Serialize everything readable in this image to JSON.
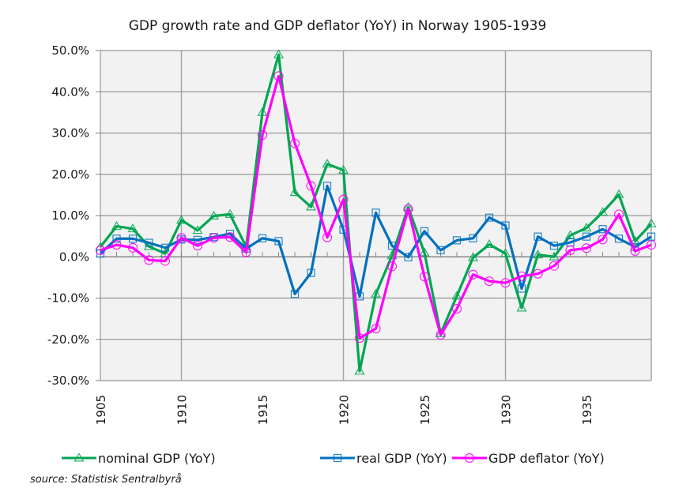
{
  "chart_data": {
    "type": "line",
    "title": "GDP growth rate and GDP deflator  (YoY) in Norway  1905-1939",
    "xlabel": "",
    "ylabel": "",
    "x": [
      1905,
      1906,
      1907,
      1908,
      1909,
      1910,
      1911,
      1912,
      1913,
      1914,
      1915,
      1916,
      1917,
      1918,
      1919,
      1920,
      1921,
      1922,
      1923,
      1924,
      1925,
      1926,
      1927,
      1928,
      1929,
      1930,
      1931,
      1932,
      1933,
      1934,
      1935,
      1936,
      1937,
      1938,
      1939
    ],
    "xticks": [
      "1905",
      "1910",
      "1915",
      "1920",
      "1925",
      "1930",
      "1935"
    ],
    "xtick_years": [
      1905,
      1910,
      1915,
      1920,
      1925,
      1930,
      1935
    ],
    "xlim": [
      1905,
      1939
    ],
    "ylim": [
      -30,
      50
    ],
    "yticks": [
      50,
      40,
      30,
      20,
      10,
      0,
      -10,
      -20,
      -30
    ],
    "ytick_labels": [
      "50.0%",
      "40.0%",
      "30.0%",
      "20.0%",
      "10.0%",
      "0.0%",
      "-10.0%",
      "-20.0%",
      "-30.0%"
    ],
    "grid": true,
    "vertical_gridlines_years": [
      1910,
      1920,
      1930
    ],
    "legend_position": "bottom",
    "unit": "%",
    "series": [
      {
        "name": "nominal GDP (YoY)",
        "color": "#00a650",
        "marker": "triangle",
        "values": [
          2.4,
          7.4,
          6.8,
          2.5,
          0.8,
          8.9,
          6.4,
          9.9,
          10.3,
          2.4,
          35.0,
          49.0,
          15.6,
          12.1,
          22.5,
          21.0,
          -27.7,
          -9.0,
          0.3,
          12.0,
          1.0,
          -18.6,
          -9.5,
          -0.2,
          3.0,
          0.8,
          -12.4,
          0.5,
          0.0,
          5.2,
          7.0,
          10.8,
          15.1,
          3.8,
          8.0
        ]
      },
      {
        "name": "real GDP (YoY)",
        "color": "#0070c0",
        "marker": "square",
        "values": [
          0.8,
          4.4,
          4.4,
          3.4,
          2.2,
          4.2,
          4.1,
          4.8,
          5.6,
          2.0,
          4.5,
          3.8,
          -9.0,
          -3.9,
          17.2,
          6.6,
          -9.6,
          10.7,
          2.7,
          -0.1,
          6.2,
          1.6,
          4.0,
          4.5,
          9.5,
          7.6,
          -7.7,
          4.9,
          2.7,
          3.5,
          4.9,
          6.7,
          4.4,
          2.4,
          4.9
        ]
      },
      {
        "name": "GDP deflator (YoY)",
        "color": "#ff00ff",
        "marker": "circle",
        "values": [
          1.6,
          2.9,
          2.2,
          -0.8,
          -1.0,
          4.6,
          2.7,
          4.6,
          4.8,
          1.1,
          29.5,
          43.8,
          27.5,
          17.2,
          4.7,
          13.9,
          -19.7,
          -17.4,
          -2.3,
          11.6,
          -4.8,
          -18.9,
          -12.6,
          -4.3,
          -5.9,
          -6.3,
          -4.7,
          -4.1,
          -2.2,
          1.6,
          2.1,
          4.2,
          10.3,
          1.4,
          2.9
        ]
      }
    ]
  },
  "source_note": "source: Statistisk Sentralbyrå",
  "colors": {
    "plot_background": "#f2f2f2",
    "gridline": "#a6a6a6"
  }
}
